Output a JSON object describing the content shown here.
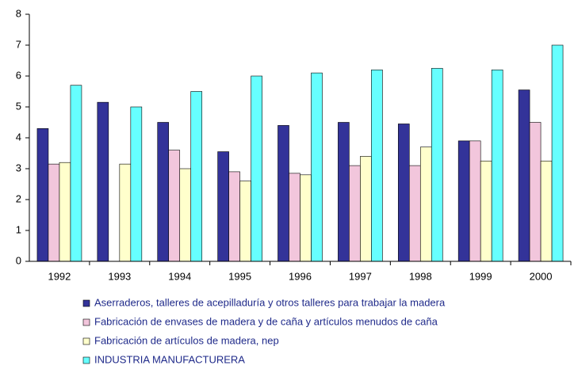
{
  "chart_data": {
    "type": "bar",
    "categories": [
      "1992",
      "1993",
      "1994",
      "1995",
      "1996",
      "1997",
      "1998",
      "1999",
      "2000"
    ],
    "series": [
      {
        "name": "Aserraderos, talleres de acepilladuría y otros talleres para trabajar la madera",
        "color": "#333399",
        "values": [
          4.3,
          5.15,
          4.5,
          3.55,
          4.4,
          4.5,
          4.45,
          3.9,
          5.55
        ]
      },
      {
        "name": "Fabricación de envases de madera y de caña y artículos menudos de caña",
        "color": "#f2c6dc",
        "values": [
          3.15,
          null,
          3.6,
          2.9,
          2.85,
          3.1,
          3.1,
          3.9,
          4.5
        ]
      },
      {
        "name": "Fabricación de artículos de madera, nep",
        "color": "#ffffcc",
        "values": [
          3.2,
          3.15,
          3.0,
          2.6,
          2.8,
          3.4,
          3.7,
          3.25,
          3.25
        ]
      },
      {
        "name": "INDUSTRIA MANUFACTURERA",
        "color": "#66ffff",
        "values": [
          5.7,
          5.0,
          5.5,
          6.0,
          6.1,
          6.2,
          6.25,
          6.2,
          7.0
        ]
      }
    ],
    "ylim": [
      0,
      8
    ],
    "yticks": [
      0,
      1,
      2,
      3,
      4,
      5,
      6,
      7,
      8
    ],
    "grid": false
  }
}
